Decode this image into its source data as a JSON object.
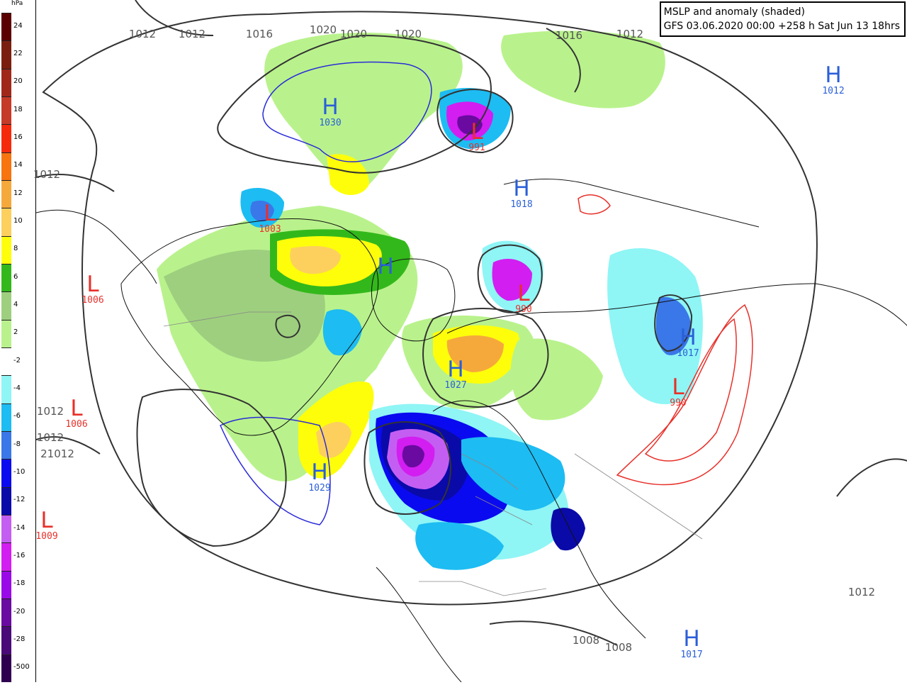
{
  "title": {
    "line1": "MSLP and anomaly (shaded)",
    "line2": "GFS 03.06.2020 00:00 +258 h Sat Jun 13 18hrs"
  },
  "colorbar": {
    "unit": "hPa",
    "levels": [
      {
        "label": "24",
        "color": "#5a0000"
      },
      {
        "label": "22",
        "color": "#7a1f10"
      },
      {
        "label": "20",
        "color": "#a0281a"
      },
      {
        "label": "18",
        "color": "#c63a28"
      },
      {
        "label": "16",
        "color": "#f52a0c"
      },
      {
        "label": "14",
        "color": "#f7740f"
      },
      {
        "label": "12",
        "color": "#f6a93b"
      },
      {
        "label": "10",
        "color": "#fdd05d"
      },
      {
        "label": "8",
        "color": "#fefe0a"
      },
      {
        "label": "6",
        "color": "#33b81b"
      },
      {
        "label": "4",
        "color": "#9ecf7f"
      },
      {
        "label": "2",
        "color": "#b9f28c"
      },
      {
        "label": "-2",
        "color": "#ffffff"
      },
      {
        "label": "-4",
        "color": "#8ff5f5"
      },
      {
        "label": "-6",
        "color": "#1dbcf2"
      },
      {
        "label": "-8",
        "color": "#3a77e8"
      },
      {
        "label": "-10",
        "color": "#0a0af0"
      },
      {
        "label": "-12",
        "color": "#0a0aa8"
      },
      {
        "label": "-14",
        "color": "#c45ef2"
      },
      {
        "label": "-16",
        "color": "#d21ef0"
      },
      {
        "label": "-18",
        "color": "#9a0ae8"
      },
      {
        "label": "-20",
        "color": "#6a0aa0"
      },
      {
        "label": "-28",
        "color": "#4a0a78"
      },
      {
        "label": "-500",
        "color": "#300050"
      }
    ]
  },
  "pressure_systems": [
    {
      "type": "H",
      "value": "1030",
      "color": "#2a5fd8"
    },
    {
      "type": "H",
      "value": "1012",
      "color": "#2a5fd8"
    },
    {
      "type": "H",
      "value": "1018",
      "color": "#2a5fd8"
    },
    {
      "type": "H",
      "value": "",
      "color": "#2a5fd8"
    },
    {
      "type": "H",
      "value": "1027",
      "color": "#2a5fd8"
    },
    {
      "type": "H",
      "value": "1029",
      "color": "#2a5fd8"
    },
    {
      "type": "H",
      "value": "1017",
      "color": "#2a5fd8"
    },
    {
      "type": "H",
      "value": "1017",
      "color": "#2a5fd8"
    },
    {
      "type": "L",
      "value": "1003",
      "color": "#e8302a"
    },
    {
      "type": "L",
      "value": "1006",
      "color": "#e8302a"
    },
    {
      "type": "L",
      "value": "1006",
      "color": "#e8302a"
    },
    {
      "type": "L",
      "value": "1009",
      "color": "#e8302a"
    },
    {
      "type": "L",
      "value": "991",
      "color": "#e8302a"
    },
    {
      "type": "L",
      "value": "990",
      "color": "#e8302a"
    },
    {
      "type": "L",
      "value": "990",
      "color": "#e8302a"
    }
  ],
  "isobar_labels": [
    "1012",
    "1012",
    "1016",
    "1020",
    "1020",
    "1020",
    "1016",
    "1012",
    "1012",
    "1012",
    "1012",
    "21012",
    "1012",
    "1008",
    "1008"
  ]
}
